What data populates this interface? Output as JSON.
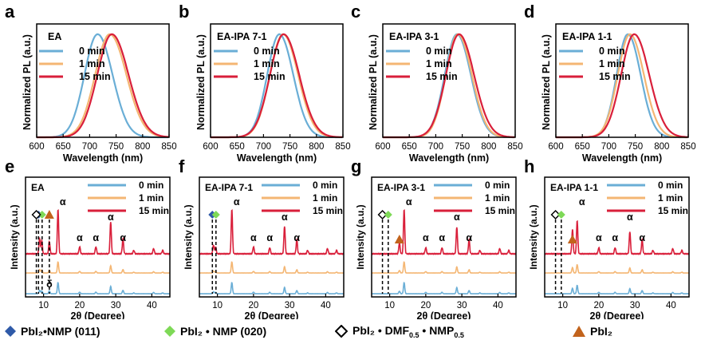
{
  "colors": {
    "t0": "#6aaed6",
    "t1": "#f4b673",
    "t15": "#d91f3a",
    "black": "#000000",
    "blue_marker": "#2f5aa8",
    "green_marker": "#7ed957",
    "orange_marker": "#c2631c"
  },
  "series_labels": [
    "0 min",
    "1 min",
    "15 min"
  ],
  "pl_panels": [
    {
      "letter": "a",
      "title": "EA",
      "peaks": [
        715,
        738,
        742
      ],
      "widths": [
        27,
        30,
        30
      ]
    },
    {
      "letter": "b",
      "title": "EA-IPA 7-1",
      "peaks": [
        730,
        737,
        738
      ],
      "widths": [
        25,
        27,
        28
      ]
    },
    {
      "letter": "c",
      "title": "EA-IPA 3-1",
      "peaks": [
        740,
        742,
        744
      ],
      "widths": [
        25,
        25,
        27
      ]
    },
    {
      "letter": "d",
      "title": "EA-IPA 1-1",
      "peaks": [
        736,
        740,
        748
      ],
      "widths": [
        23,
        25,
        27
      ]
    }
  ],
  "pl_axes": {
    "xlabel": "Wavelength (nm)",
    "ylabel": "Normalized PL (a.u.)",
    "xlim": [
      600,
      850
    ],
    "xticks": [
      "600",
      "650",
      "700",
      "750",
      "800",
      "850"
    ]
  },
  "xrd_panels": [
    {
      "letter": "e",
      "title": "EA",
      "annotations": [
        {
          "text": "α",
          "x": 14.0,
          "row": "top"
        },
        {
          "text": "α",
          "x": 20.0,
          "row": "mid"
        },
        {
          "text": "α",
          "x": 24.5,
          "row": "mid"
        },
        {
          "text": "α",
          "x": 28.6,
          "row": "hi"
        },
        {
          "text": "α",
          "x": 32.0,
          "row": "mid"
        },
        {
          "text": "δ",
          "x": 11.6,
          "row": "bottom"
        }
      ],
      "markers": [
        "blue",
        "green",
        "diamond",
        "triangle"
      ]
    },
    {
      "letter": "f",
      "title": "EA-IPA 7-1",
      "annotations": [
        {
          "text": "α",
          "x": 14.0,
          "row": "top"
        },
        {
          "text": "α",
          "x": 20.0,
          "row": "mid"
        },
        {
          "text": "α",
          "x": 24.5,
          "row": "mid"
        },
        {
          "text": "α",
          "x": 28.6,
          "row": "hi"
        },
        {
          "text": "α",
          "x": 32.0,
          "row": "mid"
        }
      ],
      "markers": [
        "blue",
        "green"
      ]
    },
    {
      "letter": "g",
      "title": "EA-IPA 3-1",
      "annotations": [
        {
          "text": "α",
          "x": 14.0,
          "row": "top"
        },
        {
          "text": "α",
          "x": 20.0,
          "row": "mid"
        },
        {
          "text": "α",
          "x": 24.5,
          "row": "mid"
        },
        {
          "text": "α",
          "x": 28.6,
          "row": "hi"
        },
        {
          "text": "α",
          "x": 32.0,
          "row": "mid"
        }
      ],
      "markers": [
        "diamond",
        "green",
        "triangle"
      ]
    },
    {
      "letter": "h",
      "title": "EA-IPA 1-1",
      "annotations": [
        {
          "text": "α",
          "x": 14.0,
          "row": "top"
        },
        {
          "text": "α",
          "x": 20.0,
          "row": "mid"
        },
        {
          "text": "α",
          "x": 24.5,
          "row": "mid"
        },
        {
          "text": "α",
          "x": 28.6,
          "row": "hi"
        },
        {
          "text": "α",
          "x": 32.0,
          "row": "mid"
        }
      ],
      "markers": [
        "diamond",
        "green",
        "triangle"
      ]
    }
  ],
  "xrd_axes": {
    "xlabel": "2θ (Degree)",
    "ylabel": "Intensity (a.u.)",
    "xlim": [
      5,
      45
    ],
    "xticks": [
      "10",
      "20",
      "30",
      "40"
    ]
  },
  "legend": {
    "item1": "PbI₂•NMP  (011)",
    "item2": "PbI₂ • NMP  (020)",
    "item3_main": "PbI₂ • DMF",
    "item3_sub1": "0.5",
    "item3_mid": " • NMP",
    "item3_sub2": "0.5",
    "item4": "PbI₂"
  },
  "chart_data": [
    {
      "type": "line",
      "panel": "a",
      "title": "EA",
      "xlabel": "Wavelength (nm)",
      "ylabel": "Normalized PL (a.u.)",
      "xlim": [
        600,
        850
      ],
      "ylim": [
        0,
        1.1
      ],
      "series": [
        {
          "name": "0 min",
          "peak_x": 715,
          "peak_y": 1.0
        },
        {
          "name": "1 min",
          "peak_x": 738,
          "peak_y": 1.0
        },
        {
          "name": "15 min",
          "peak_x": 742,
          "peak_y": 1.0
        }
      ]
    },
    {
      "type": "line",
      "panel": "b",
      "title": "EA-IPA 7-1",
      "xlabel": "Wavelength (nm)",
      "ylabel": "Normalized PL (a.u.)",
      "xlim": [
        600,
        850
      ],
      "ylim": [
        0,
        1.1
      ],
      "series": [
        {
          "name": "0 min",
          "peak_x": 730,
          "peak_y": 1.0
        },
        {
          "name": "1 min",
          "peak_x": 737,
          "peak_y": 1.0
        },
        {
          "name": "15 min",
          "peak_x": 738,
          "peak_y": 1.0
        }
      ]
    },
    {
      "type": "line",
      "panel": "c",
      "title": "EA-IPA 3-1",
      "xlabel": "Wavelength (nm)",
      "ylabel": "Normalized PL (a.u.)",
      "xlim": [
        600,
        850
      ],
      "ylim": [
        0,
        1.1
      ],
      "series": [
        {
          "name": "0 min",
          "peak_x": 740,
          "peak_y": 1.0
        },
        {
          "name": "1 min",
          "peak_x": 742,
          "peak_y": 1.0
        },
        {
          "name": "15 min",
          "peak_x": 744,
          "peak_y": 1.0
        }
      ]
    },
    {
      "type": "line",
      "panel": "d",
      "title": "EA-IPA 1-1",
      "xlabel": "Wavelength (nm)",
      "ylabel": "Normalized PL (a.u.)",
      "xlim": [
        600,
        850
      ],
      "ylim": [
        0,
        1.1
      ],
      "series": [
        {
          "name": "0 min",
          "peak_x": 736,
          "peak_y": 1.0
        },
        {
          "name": "1 min",
          "peak_x": 740,
          "peak_y": 1.0
        },
        {
          "name": "15 min",
          "peak_x": 748,
          "peak_y": 1.0
        }
      ]
    },
    {
      "type": "line",
      "panel": "e",
      "title": "EA",
      "xlabel": "2θ (Degree)",
      "ylabel": "Intensity (a.u.)",
      "xlim": [
        5,
        45
      ],
      "series": [
        {
          "name": "0 min"
        },
        {
          "name": "1 min"
        },
        {
          "name": "15 min"
        }
      ],
      "peak_positions": [
        8.9,
        9.5,
        11.6,
        14.0,
        20.0,
        24.5,
        28.6,
        32.0,
        40.5,
        43.0
      ]
    },
    {
      "type": "line",
      "panel": "f",
      "title": "EA-IPA 7-1",
      "xlabel": "2θ (Degree)",
      "ylabel": "Intensity (a.u.)",
      "xlim": [
        5,
        45
      ],
      "series": [
        {
          "name": "0 min"
        },
        {
          "name": "1 min"
        },
        {
          "name": "15 min"
        }
      ],
      "peak_positions": [
        8.9,
        9.5,
        14.0,
        20.0,
        24.5,
        28.6,
        32.0,
        40.5,
        43.0
      ]
    },
    {
      "type": "line",
      "panel": "g",
      "title": "EA-IPA 3-1",
      "xlabel": "2θ (Degree)",
      "ylabel": "Intensity (a.u.)",
      "xlim": [
        5,
        45
      ],
      "series": [
        {
          "name": "0 min"
        },
        {
          "name": "1 min"
        },
        {
          "name": "15 min"
        }
      ],
      "peak_positions": [
        8.0,
        9.5,
        12.7,
        14.0,
        20.0,
        24.5,
        28.6,
        32.0,
        40.5,
        43.0
      ]
    },
    {
      "type": "line",
      "panel": "h",
      "title": "EA-IPA 1-1",
      "xlabel": "2θ (Degree)",
      "ylabel": "Intensity (a.u.)",
      "xlim": [
        5,
        45
      ],
      "series": [
        {
          "name": "0 min"
        },
        {
          "name": "1 min"
        },
        {
          "name": "15 min"
        }
      ],
      "peak_positions": [
        8.0,
        9.5,
        12.7,
        14.0,
        20.0,
        24.5,
        28.6,
        32.0,
        40.5,
        43.0
      ]
    }
  ]
}
